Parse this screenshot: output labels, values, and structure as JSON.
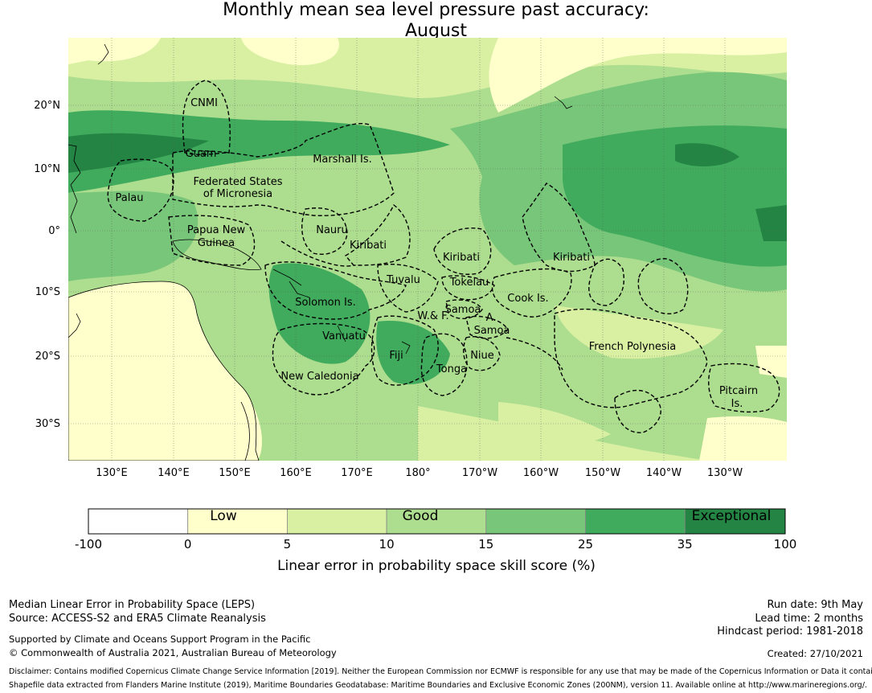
{
  "title_line1": "Monthly mean sea level pressure past accuracy:",
  "title_line2": "August",
  "lat_labels": [
    "20°N",
    "10°N",
    "0°",
    "10°S",
    "20°S",
    "30°S"
  ],
  "lon_labels": [
    "130°E",
    "140°E",
    "150°E",
    "160°E",
    "170°E",
    "180°",
    "170°W",
    "160°W",
    "150°W",
    "140°W",
    "130°W"
  ],
  "regions": [
    "CNMI",
    "Guam",
    "Marshall Is.",
    "Federated States",
    "of Micronesia",
    "Palau",
    "Papua New",
    "Guinea",
    "Nauru",
    "Kiribati",
    "Kiribati",
    "Kiribati",
    "Tuvalu",
    "Tokelau",
    "Solomon Is.",
    "Samoa",
    "A.",
    "Samoa",
    "W.& F.",
    "Cook Is.",
    "Vanuatu",
    "Fiji",
    "Niue",
    "Tonga",
    "French Polynesia",
    "New Caledonia",
    "Pitcairn",
    "Is."
  ],
  "legend": {
    "ticks": [
      "-100",
      "0",
      "5",
      "10",
      "15",
      "25",
      "35",
      "100"
    ],
    "colors": [
      "#ffffff",
      "#ffffcc",
      "#d9f0a3",
      "#addd8e",
      "#78c679",
      "#41ab5d",
      "#238443"
    ],
    "category_low": "Low",
    "category_good": "Good",
    "category_exceptional": "Exceptional",
    "label": "Linear error in probability space skill score (%)"
  },
  "footer": {
    "line1": "Median Linear Error in Probability Space (LEPS)",
    "line2": "Source: ACCESS-S2 and ERA5 Climate Reanalysis",
    "line3": "Supported by Climate and Oceans Support Program in the Pacific",
    "line4": "© Commonwealth of Australia 2021, Australian Bureau of Meteorology",
    "run_date": "Run date: 9th May",
    "lead_time": "Lead time: 2 months",
    "hindcast": "Hindcast period: 1981-2018",
    "created": "Created: 27/10/2021",
    "disclaimer1": "Disclaimer: Contains modified Copernicus Climate Change Service Information [2019]. Neither the European Commission nor ECMWF is responsible for any use that may be made of the Copernicus Information or Data it contains.",
    "disclaimer2": "Shapefile data extracted from Flanders Marine Institute (2019), Maritime Boundaries Geodatabase: Maritime Boundaries and Exclusive Economic Zones (200NM), version 11. Available online at http://www.marineregions.org/."
  }
}
